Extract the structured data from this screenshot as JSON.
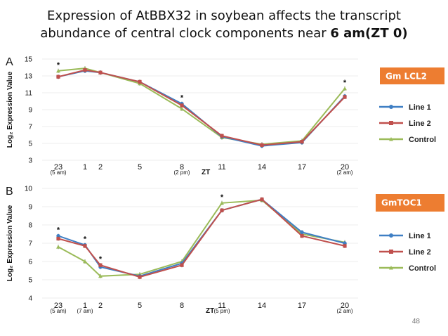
{
  "slide": {
    "title_line1": "Expression of AtBBX32 in soybean affects the transcript",
    "title_line2_prefix": "abundance of central clock components near ",
    "title_line2_bold": "6 am(ZT 0)",
    "page_number": "48"
  },
  "colors": {
    "Line 1": "#3f7fc4",
    "Line 2": "#c0504d",
    "Control": "#9bbb59",
    "badge": "#ed7d31"
  },
  "chart_data": [
    {
      "type": "line",
      "panel_label": "A",
      "badge": "Gm LCL2",
      "ylabel": "Log₂ Expression Value",
      "xlabel": "ZT",
      "ylim": [
        3,
        15
      ],
      "yticks": [
        3,
        5,
        7,
        9,
        11,
        13,
        15
      ],
      "categories": [
        "23",
        "1",
        "2",
        "5",
        "8",
        "11",
        "14",
        "17",
        "20"
      ],
      "time_notes": [
        {
          "category": "23",
          "text": "(5 am)"
        },
        {
          "category": "8",
          "text": "(2 pm)"
        },
        {
          "category": "20",
          "text": "(2 am)"
        }
      ],
      "significance": [
        "23",
        "8",
        "20"
      ],
      "series": [
        {
          "name": "Line 1",
          "values": [
            12.9,
            13.6,
            13.4,
            12.3,
            9.7,
            5.8,
            4.7,
            5.1,
            10.6
          ]
        },
        {
          "name": "Line 2",
          "values": [
            12.9,
            13.7,
            13.4,
            12.3,
            9.5,
            5.9,
            4.8,
            5.2,
            10.5
          ]
        },
        {
          "name": "Control",
          "values": [
            13.6,
            13.9,
            13.4,
            12.1,
            9.1,
            5.7,
            4.9,
            5.3,
            11.5
          ]
        }
      ],
      "legend": [
        "Line 1",
        "Line 2",
        "Control"
      ]
    },
    {
      "type": "line",
      "panel_label": "B",
      "badge": "GmTOC1",
      "ylabel": "Log₂ Expression Value",
      "xlabel": "ZT",
      "ylim": [
        4,
        10
      ],
      "yticks": [
        4,
        5,
        6,
        7,
        8,
        9,
        10
      ],
      "categories": [
        "23",
        "1",
        "2",
        "5",
        "8",
        "11",
        "14",
        "17",
        "20"
      ],
      "time_notes": [
        {
          "category": "23",
          "text": "(5 am)"
        },
        {
          "category": "1",
          "text": "(7 am)"
        },
        {
          "category": "11",
          "text": "(5 pm)"
        },
        {
          "category": "20",
          "text": "(2 am)"
        }
      ],
      "significance": [
        "23",
        "1",
        "2",
        "11"
      ],
      "series": [
        {
          "name": "Line 1",
          "values": [
            7.4,
            6.9,
            5.7,
            5.2,
            5.9,
            8.8,
            9.4,
            7.6,
            7.0
          ]
        },
        {
          "name": "Line 2",
          "values": [
            7.25,
            6.85,
            5.8,
            5.15,
            5.8,
            8.8,
            9.4,
            7.4,
            6.85
          ]
        },
        {
          "name": "Control",
          "values": [
            6.8,
            6.0,
            5.2,
            5.3,
            6.0,
            9.2,
            9.35,
            7.5,
            7.05
          ]
        }
      ],
      "legend": [
        "Line 1",
        "Line 2",
        "Control"
      ]
    }
  ]
}
